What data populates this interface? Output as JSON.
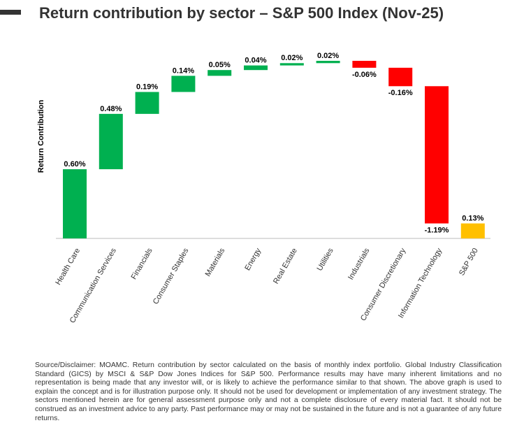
{
  "chart_data": {
    "type": "waterfall",
    "title": "Return contribution by sector – S&P 500 Index (Nov-25)",
    "y_label": "Return Contribution",
    "categories": [
      "Health Care",
      "Communication Services",
      "Financials",
      "Consumer Staples",
      "Materials",
      "Energy",
      "Real Estate",
      "Utilities",
      "Industrials",
      "Consumer Discretionary",
      "Information Technology",
      "S&P 500"
    ],
    "values": [
      0.6,
      0.48,
      0.19,
      0.14,
      0.05,
      0.04,
      0.02,
      0.02,
      -0.06,
      -0.16,
      -1.19,
      0.13
    ],
    "value_labels": [
      "0.60%",
      "0.48%",
      "0.19%",
      "0.14%",
      "0.05%",
      "0.04%",
      "0.02%",
      "0.02%",
      "-0.06%",
      "-0.16%",
      "-1.19%",
      "0.13%"
    ],
    "is_total": [
      false,
      false,
      false,
      false,
      false,
      false,
      false,
      false,
      false,
      false,
      false,
      true
    ],
    "colors": {
      "increase": "#00b050",
      "decrease": "#ff0000",
      "total": "#ffc000"
    },
    "footnote": "Source/Disclaimer: MOAMC. Return contribution by sector calculated on the basis of monthly index portfolio. Global Industry Classification Standard (GICS) by MSCI & S&P Dow Jones Indices for S&P 500. Performance results may have many inherent limitations and no representation is being made that any investor will, or is likely to achieve the performance similar to that shown. The above graph is used to explain the concept and is for illustration purpose only. It should not be used for development or implementation of any investment strategy. The sectors mentioned herein are for general assessment purpose only and not a complete disclosure of every material fact. It should not be construed as an investment advice to any party. Past performance may or may not be sustained in the future and is not a guarantee of any future returns."
  }
}
